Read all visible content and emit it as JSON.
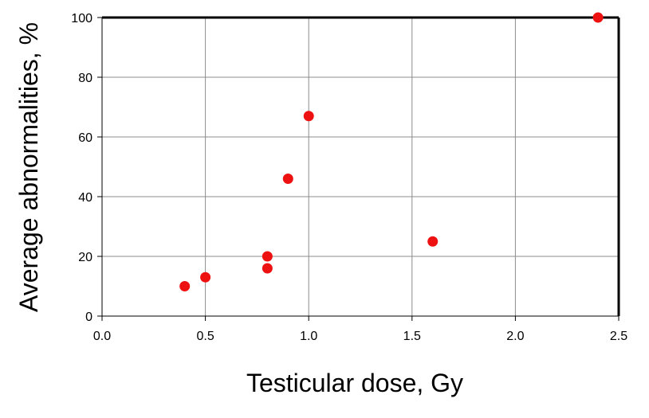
{
  "chart_data": {
    "type": "scatter",
    "xlabel": "Testicular dose, Gy",
    "ylabel": "Average abnormalities, %",
    "xlim": [
      0,
      2.5
    ],
    "ylim": [
      0,
      100
    ],
    "x_ticks": [
      "0.0",
      "0.5",
      "1.0",
      "1.5",
      "2.0",
      "2.5"
    ],
    "y_ticks": [
      "0",
      "20",
      "40",
      "60",
      "80",
      "100"
    ],
    "grid": true,
    "marker_color": "#ee1111",
    "grid_color": "#8c8c8c",
    "series": [
      {
        "points": [
          {
            "x": 0.4,
            "y": 10
          },
          {
            "x": 0.5,
            "y": 13
          },
          {
            "x": 0.8,
            "y": 16
          },
          {
            "x": 0.8,
            "y": 20
          },
          {
            "x": 0.9,
            "y": 46
          },
          {
            "x": 1.0,
            "y": 67
          },
          {
            "x": 1.6,
            "y": 25
          },
          {
            "x": 2.4,
            "y": 100
          }
        ]
      }
    ]
  }
}
